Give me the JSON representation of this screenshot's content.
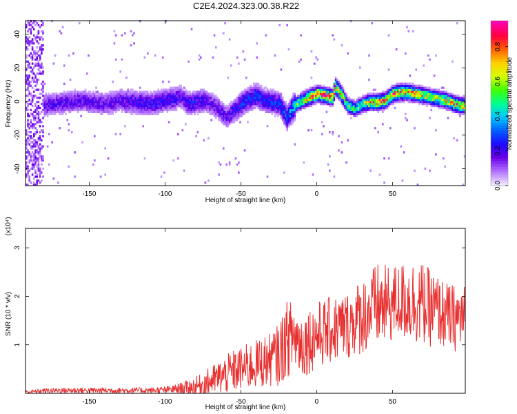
{
  "chart_data": [
    {
      "type": "heatmap",
      "title": "C2E4.2024.323.00.38.R22",
      "xlabel": "Height of straight line (km)",
      "ylabel": "Frequency (Hz)",
      "xlim": [
        -192,
        98
      ],
      "ylim": [
        -50,
        48
      ],
      "xticks": [
        -150,
        -100,
        -50,
        0,
        50
      ],
      "yticks": [
        -40,
        -20,
        0,
        20,
        40
      ],
      "colorbar": {
        "label": "Normalized spectral amplitude",
        "range": [
          0,
          0.95
        ],
        "ticks": [
          "0.0",
          "0.2",
          "0.4",
          "0.6",
          "0.8"
        ],
        "tick_values": [
          0,
          0.2,
          0.4,
          0.6,
          0.8
        ],
        "colors": [
          "#f0e6ff",
          "#b070ff",
          "#6a00e8",
          "#1d0bff",
          "#0060ff",
          "#00c8ff",
          "#00ff90",
          "#40ff00",
          "#d8ff00",
          "#ffd000",
          "#ff6000",
          "#ff0040",
          "#ff00b0"
        ]
      },
      "ridge": {
        "x": [
          -190,
          -180,
          -175,
          -165,
          -155,
          -150,
          -140,
          -130,
          -120,
          -110,
          -100,
          -95,
          -90,
          -85,
          -80,
          -75,
          -70,
          -65,
          -60,
          -55,
          -50,
          -45,
          -40,
          -35,
          -30,
          -25,
          -20,
          -15,
          -10,
          -5,
          0,
          5,
          10,
          12,
          15,
          20,
          25,
          30,
          35,
          40,
          45,
          50,
          55,
          60,
          65,
          70,
          75,
          80,
          85,
          90,
          95
        ],
        "y": [
          -4,
          -3,
          -2,
          -1,
          0,
          -1,
          -2,
          0,
          -1,
          -2,
          0,
          1,
          2,
          -2,
          -1,
          0,
          -2,
          -5,
          -10,
          -6,
          -2,
          1,
          3,
          0,
          -1,
          -2,
          -10,
          -3,
          0,
          2,
          4,
          3,
          2,
          8,
          5,
          -3,
          -5,
          -2,
          -1,
          -1,
          0,
          4,
          5,
          5,
          4,
          3,
          2,
          1,
          0,
          -2,
          -3
        ],
        "strength": [
          0.15,
          0.2,
          0.2,
          0.2,
          0.2,
          0.2,
          0.2,
          0.2,
          0.25,
          0.25,
          0.25,
          0.25,
          0.2,
          0.25,
          0.25,
          0.25,
          0.2,
          0.2,
          0.2,
          0.25,
          0.3,
          0.3,
          0.3,
          0.3,
          0.3,
          0.3,
          0.35,
          0.5,
          0.65,
          0.8,
          0.9,
          0.9,
          0.85,
          0.95,
          0.8,
          0.6,
          0.55,
          0.65,
          0.8,
          0.85,
          0.85,
          0.9,
          0.9,
          0.85,
          0.85,
          0.75,
          0.7,
          0.75,
          0.75,
          0.8,
          0.8
        ]
      }
    },
    {
      "type": "line",
      "xlabel": "Height of straight line (km)",
      "ylabel": "SNR (10 * v/v)",
      "scale_label": "(x10⁴)",
      "xlim": [
        -192,
        98
      ],
      "ylim": [
        0,
        3.4
      ],
      "xticks": [
        -150,
        -100,
        -50,
        0,
        50
      ],
      "yticks": [
        1,
        2,
        3
      ],
      "color": "#e83030",
      "envelope": {
        "x": [
          -190,
          -180,
          -170,
          -160,
          -150,
          -140,
          -130,
          -120,
          -110,
          -100,
          -95,
          -90,
          -85,
          -80,
          -75,
          -70,
          -65,
          -60,
          -55,
          -50,
          -45,
          -40,
          -35,
          -30,
          -25,
          -20,
          -15,
          -10,
          -5,
          0,
          5,
          10,
          15,
          20,
          25,
          30,
          35,
          40,
          45,
          50,
          55,
          60,
          65,
          70,
          75,
          80,
          85,
          90,
          95
        ],
        "mean": [
          0.03,
          0.05,
          0.06,
          0.06,
          0.06,
          0.06,
          0.06,
          0.06,
          0.06,
          0.07,
          0.08,
          0.1,
          0.12,
          0.14,
          0.18,
          0.25,
          0.32,
          0.38,
          0.45,
          0.5,
          0.55,
          0.6,
          0.65,
          0.7,
          0.8,
          1.1,
          1.2,
          1.0,
          1.1,
          1.2,
          1.25,
          1.3,
          1.35,
          1.4,
          1.5,
          1.6,
          1.7,
          1.8,
          1.8,
          1.85,
          1.9,
          1.9,
          1.9,
          1.85,
          1.75,
          1.7,
          1.6,
          1.55,
          1.55
        ],
        "spread": [
          0.03,
          0.05,
          0.06,
          0.06,
          0.06,
          0.06,
          0.06,
          0.06,
          0.06,
          0.07,
          0.09,
          0.12,
          0.16,
          0.2,
          0.25,
          0.3,
          0.35,
          0.4,
          0.45,
          0.45,
          0.5,
          0.5,
          0.55,
          0.55,
          0.65,
          0.8,
          0.75,
          0.7,
          0.7,
          0.7,
          0.7,
          0.7,
          0.7,
          0.7,
          0.75,
          0.8,
          0.85,
          0.9,
          0.85,
          0.8,
          0.8,
          0.85,
          0.9,
          0.85,
          0.8,
          0.75,
          0.7,
          0.7,
          0.7
        ]
      }
    }
  ]
}
